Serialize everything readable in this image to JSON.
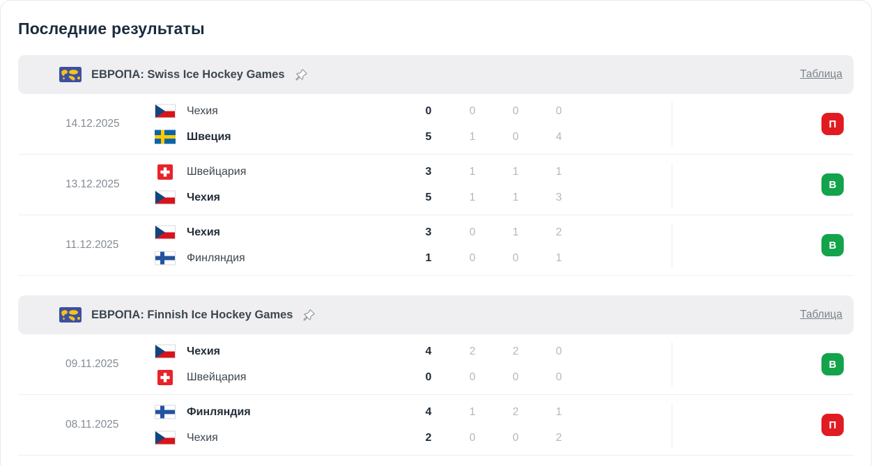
{
  "page": {
    "title": "Последние результаты"
  },
  "icons": {
    "league_flag": "europe-map-icon",
    "pin": "pin-icon"
  },
  "colors": {
    "win_green": "#12A34B",
    "loss_red": "#E11B22",
    "league_icon_blue": "#3D4FA1",
    "league_icon_yellow": "#F2C31B",
    "header_bar_gray": "#EFEFF1"
  },
  "sections": [
    {
      "name": "ЕВРОПА: Swiss Ice Hockey Games",
      "table_link": "Таблица",
      "matches": [
        {
          "date": "14.12.2025",
          "home": {
            "team": "Чехия",
            "flag": "cze",
            "bold": false,
            "total": "0",
            "periods": [
              "0",
              "0",
              "0"
            ]
          },
          "away": {
            "team": "Швеция",
            "flag": "swe",
            "bold": true,
            "total": "5",
            "periods": [
              "1",
              "0",
              "4"
            ]
          },
          "result": {
            "label": "П",
            "type": "loss"
          }
        },
        {
          "date": "13.12.2025",
          "home": {
            "team": "Швейцария",
            "flag": "sui",
            "bold": false,
            "total": "3",
            "periods": [
              "1",
              "1",
              "1"
            ]
          },
          "away": {
            "team": "Чехия",
            "flag": "cze",
            "bold": true,
            "total": "5",
            "periods": [
              "1",
              "1",
              "3"
            ]
          },
          "result": {
            "label": "В",
            "type": "win"
          }
        },
        {
          "date": "11.12.2025",
          "home": {
            "team": "Чехия",
            "flag": "cze",
            "bold": true,
            "total": "3",
            "periods": [
              "0",
              "1",
              "2"
            ]
          },
          "away": {
            "team": "Финляндия",
            "flag": "fin",
            "bold": false,
            "total": "1",
            "periods": [
              "0",
              "0",
              "1"
            ]
          },
          "result": {
            "label": "В",
            "type": "win"
          }
        }
      ]
    },
    {
      "name": "ЕВРОПА: Finnish Ice Hockey Games",
      "table_link": "Таблица",
      "matches": [
        {
          "date": "09.11.2025",
          "home": {
            "team": "Чехия",
            "flag": "cze",
            "bold": true,
            "total": "4",
            "periods": [
              "2",
              "2",
              "0"
            ]
          },
          "away": {
            "team": "Швейцария",
            "flag": "sui",
            "bold": false,
            "total": "0",
            "periods": [
              "0",
              "0",
              "0"
            ]
          },
          "result": {
            "label": "В",
            "type": "win"
          }
        },
        {
          "date": "08.11.2025",
          "home": {
            "team": "Финляндия",
            "flag": "fin",
            "bold": true,
            "total": "4",
            "periods": [
              "1",
              "2",
              "1"
            ]
          },
          "away": {
            "team": "Чехия",
            "flag": "cze",
            "bold": false,
            "total": "2",
            "periods": [
              "0",
              "0",
              "2"
            ]
          },
          "result": {
            "label": "П",
            "type": "loss"
          }
        }
      ]
    }
  ]
}
